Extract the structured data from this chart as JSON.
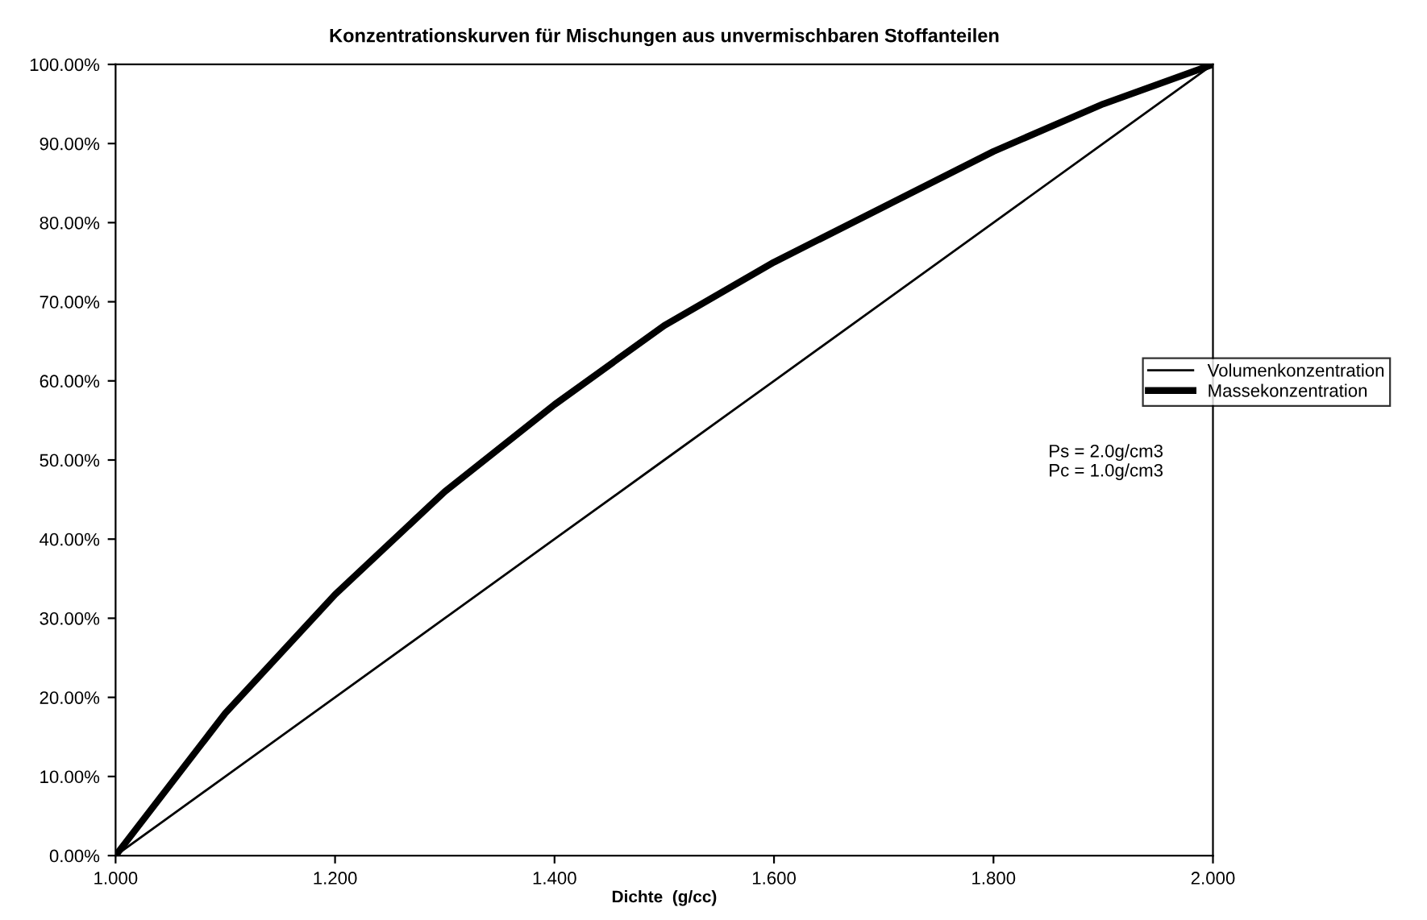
{
  "chart_data": {
    "type": "line",
    "title": "Konzentrationskurven für Mischungen aus unvermischbaren Stoffanteilen",
    "xlabel": "Dichte  (g/cc)",
    "x": [
      1.0,
      1.1,
      1.2,
      1.3,
      1.4,
      1.5,
      1.6,
      1.7,
      1.8,
      1.9,
      2.0
    ],
    "series": [
      {
        "name": "Volumenkonzentration",
        "color": "#000000",
        "values": [
          0,
          10,
          20,
          30,
          40,
          50,
          60,
          70,
          80,
          90,
          100
        ]
      },
      {
        "name": "Massekonzentration",
        "color": "#000000",
        "values": [
          0,
          18,
          33,
          46,
          57,
          67,
          75,
          82,
          89,
          95,
          100
        ]
      }
    ],
    "xlim": [
      1.0,
      2.0
    ],
    "ylim": [
      0,
      100
    ],
    "xticks": [
      {
        "value": 1.0,
        "label": "1.000"
      },
      {
        "value": 1.2,
        "label": "1.200"
      },
      {
        "value": 1.4,
        "label": "1.400"
      },
      {
        "value": 1.6,
        "label": "1.600"
      },
      {
        "value": 1.8,
        "label": "1.800"
      },
      {
        "value": 2.0,
        "label": "2.000"
      }
    ],
    "yticks": [
      {
        "value": 0,
        "label": "0.00%"
      },
      {
        "value": 10,
        "label": "10.00%"
      },
      {
        "value": 20,
        "label": "20.00%"
      },
      {
        "value": 30,
        "label": "30.00%"
      },
      {
        "value": 40,
        "label": "40.00%"
      },
      {
        "value": 50,
        "label": "50.00%"
      },
      {
        "value": 60,
        "label": "60.00%"
      },
      {
        "value": 70,
        "label": "70.00%"
      },
      {
        "value": 80,
        "label": "80.00%"
      },
      {
        "value": 90,
        "label": "90.00%"
      },
      {
        "value": 100,
        "label": "100.00%"
      }
    ],
    "annotations": [
      "Ps = 2.0g/cm3\nPc = 1.0g/cm3"
    ],
    "legend": "right",
    "grid": false,
    "marker": "none",
    "line_style": "solid"
  }
}
